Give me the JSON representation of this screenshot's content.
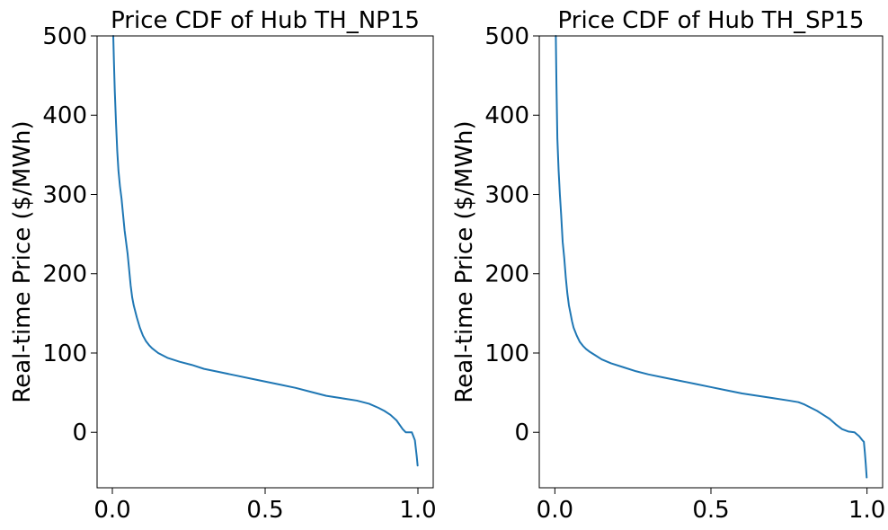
{
  "chart_data": [
    {
      "type": "line",
      "title": "Price CDF of Hub TH_NP15",
      "xlabel": "",
      "ylabel": "Real-time Price ($/MWh)",
      "xlim": [
        -0.05,
        1.05
      ],
      "ylim": [
        -70,
        500
      ],
      "xticks": [
        0.0,
        0.5,
        1.0
      ],
      "xtick_labels": [
        "0.0",
        "0.5",
        "1.0"
      ],
      "yticks": [
        0,
        100,
        200,
        300,
        400,
        500
      ],
      "ytick_labels": [
        "0",
        "100",
        "200",
        "300",
        "400",
        "500"
      ],
      "grid": false,
      "color": "#1f77b4",
      "series": [
        {
          "x": [
            0.003,
            0.005,
            0.008,
            0.012,
            0.016,
            0.02,
            0.025,
            0.03,
            0.035,
            0.04,
            0.045,
            0.05,
            0.055,
            0.06,
            0.065,
            0.07,
            0.08,
            0.09,
            0.1,
            0.11,
            0.12,
            0.13,
            0.15,
            0.18,
            0.22,
            0.26,
            0.3,
            0.35,
            0.4,
            0.45,
            0.5,
            0.55,
            0.6,
            0.65,
            0.7,
            0.75,
            0.8,
            0.84,
            0.87,
            0.89,
            0.91,
            0.93,
            0.95,
            0.96,
            0.97,
            0.98,
            0.985,
            0.99,
            0.993,
            0.996,
            0.999
          ],
          "y": [
            500,
            470,
            430,
            390,
            355,
            330,
            310,
            295,
            275,
            255,
            240,
            225,
            205,
            185,
            170,
            160,
            145,
            132,
            122,
            115,
            110,
            106,
            100,
            94,
            89,
            85,
            80,
            76,
            72,
            68,
            64,
            60,
            56,
            51,
            46,
            43,
            40,
            36,
            31,
            27,
            22,
            15,
            4,
            0,
            0,
            0,
            -5,
            -10,
            -20,
            -30,
            -42
          ]
        }
      ]
    },
    {
      "type": "line",
      "title": "Price CDF of Hub TH_SP15",
      "xlabel": "",
      "ylabel": "Real-time Price ($/MWh)",
      "xlim": [
        -0.05,
        1.05
      ],
      "ylim": [
        -70,
        500
      ],
      "xticks": [
        0.0,
        0.5,
        1.0
      ],
      "xtick_labels": [
        "0.0",
        "0.5",
        "1.0"
      ],
      "yticks": [
        0,
        100,
        200,
        300,
        400,
        500
      ],
      "ytick_labels": [
        "0",
        "100",
        "200",
        "300",
        "400",
        "500"
      ],
      "grid": false,
      "color": "#1f77b4",
      "series": [
        {
          "x": [
            0.003,
            0.005,
            0.008,
            0.012,
            0.016,
            0.02,
            0.025,
            0.03,
            0.035,
            0.04,
            0.045,
            0.05,
            0.055,
            0.06,
            0.07,
            0.08,
            0.09,
            0.1,
            0.11,
            0.13,
            0.15,
            0.18,
            0.22,
            0.26,
            0.3,
            0.35,
            0.4,
            0.45,
            0.5,
            0.55,
            0.6,
            0.65,
            0.7,
            0.75,
            0.78,
            0.8,
            0.82,
            0.84,
            0.86,
            0.88,
            0.9,
            0.92,
            0.94,
            0.96,
            0.975,
            0.985,
            0.99,
            0.993,
            0.996,
            0.999
          ],
          "y": [
            500,
            440,
            370,
            330,
            300,
            275,
            240,
            220,
            195,
            175,
            160,
            150,
            140,
            132,
            122,
            114,
            109,
            105,
            102,
            97,
            92,
            87,
            82,
            77,
            73,
            69,
            65,
            61,
            57,
            53,
            49,
            46,
            43,
            40,
            38,
            35,
            31,
            27,
            22,
            17,
            10,
            4,
            1,
            0,
            -5,
            -10,
            -12,
            -25,
            -40,
            -57
          ]
        }
      ]
    }
  ]
}
